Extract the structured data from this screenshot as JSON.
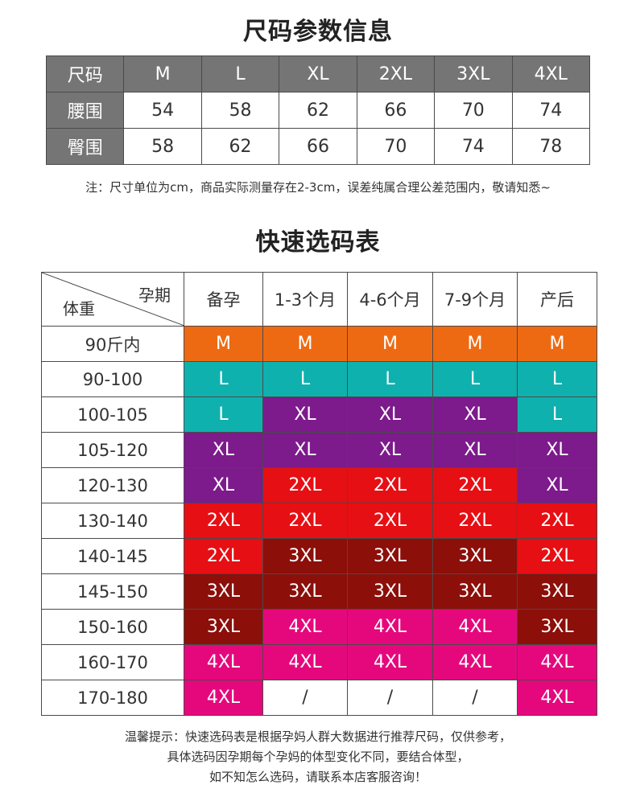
{
  "size_info": {
    "title": "尺码参数信息",
    "header": [
      "尺码",
      "M",
      "L",
      "XL",
      "2XL",
      "3XL",
      "4XL"
    ],
    "rows": [
      {
        "label": "腰围",
        "values": [
          "54",
          "58",
          "62",
          "66",
          "70",
          "74"
        ]
      },
      {
        "label": "臀围",
        "values": [
          "58",
          "62",
          "66",
          "70",
          "74",
          "78"
        ]
      }
    ],
    "note": "注：尺寸单位为cm，商品实际测量存在2-3cm，误差纯属合理公差范围内，敬请知悉~"
  },
  "quick_guide": {
    "title": "快速选码表",
    "corner_top": "孕期",
    "corner_bottom": "体重",
    "columns": [
      "备孕",
      "1-3个月",
      "4-6个月",
      "7-9个月",
      "产后"
    ],
    "colors": {
      "M": "#ee6a12",
      "L": "#0fb1ae",
      "XL": "#7d1a8c",
      "2XL": "#e60f14",
      "3XL": "#8c0f0a",
      "4XL": "#e5087d",
      "/": "#ffffff"
    },
    "rows": [
      {
        "weight": "90斤内",
        "sizes": [
          "M",
          "M",
          "M",
          "M",
          "M"
        ]
      },
      {
        "weight": "90-100",
        "sizes": [
          "L",
          "L",
          "L",
          "L",
          "L"
        ]
      },
      {
        "weight": "100-105",
        "sizes": [
          "L",
          "XL",
          "XL",
          "XL",
          "L"
        ]
      },
      {
        "weight": "105-120",
        "sizes": [
          "XL",
          "XL",
          "XL",
          "XL",
          "XL"
        ]
      },
      {
        "weight": "120-130",
        "sizes": [
          "XL",
          "2XL",
          "2XL",
          "2XL",
          "XL"
        ]
      },
      {
        "weight": "130-140",
        "sizes": [
          "2XL",
          "2XL",
          "2XL",
          "2XL",
          "2XL"
        ]
      },
      {
        "weight": "140-145",
        "sizes": [
          "2XL",
          "3XL",
          "3XL",
          "3XL",
          "2XL"
        ]
      },
      {
        "weight": "145-150",
        "sizes": [
          "3XL",
          "3XL",
          "3XL",
          "3XL",
          "3XL"
        ]
      },
      {
        "weight": "150-160",
        "sizes": [
          "3XL",
          "4XL",
          "4XL",
          "4XL",
          "3XL"
        ]
      },
      {
        "weight": "160-170",
        "sizes": [
          "4XL",
          "4XL",
          "4XL",
          "4XL",
          "4XL"
        ]
      },
      {
        "weight": "170-180",
        "sizes": [
          "4XL",
          "/",
          "/",
          "/",
          "4XL"
        ]
      }
    ]
  },
  "tips": [
    "温馨提示：快速选码表是根据孕妈人群大数据进行推荐尺码，仅供参考，",
    "具体选码因孕期每个孕妈的体型变化不同，要结合体型，",
    "如不知怎么选码，请联系本店客服咨询！"
  ]
}
